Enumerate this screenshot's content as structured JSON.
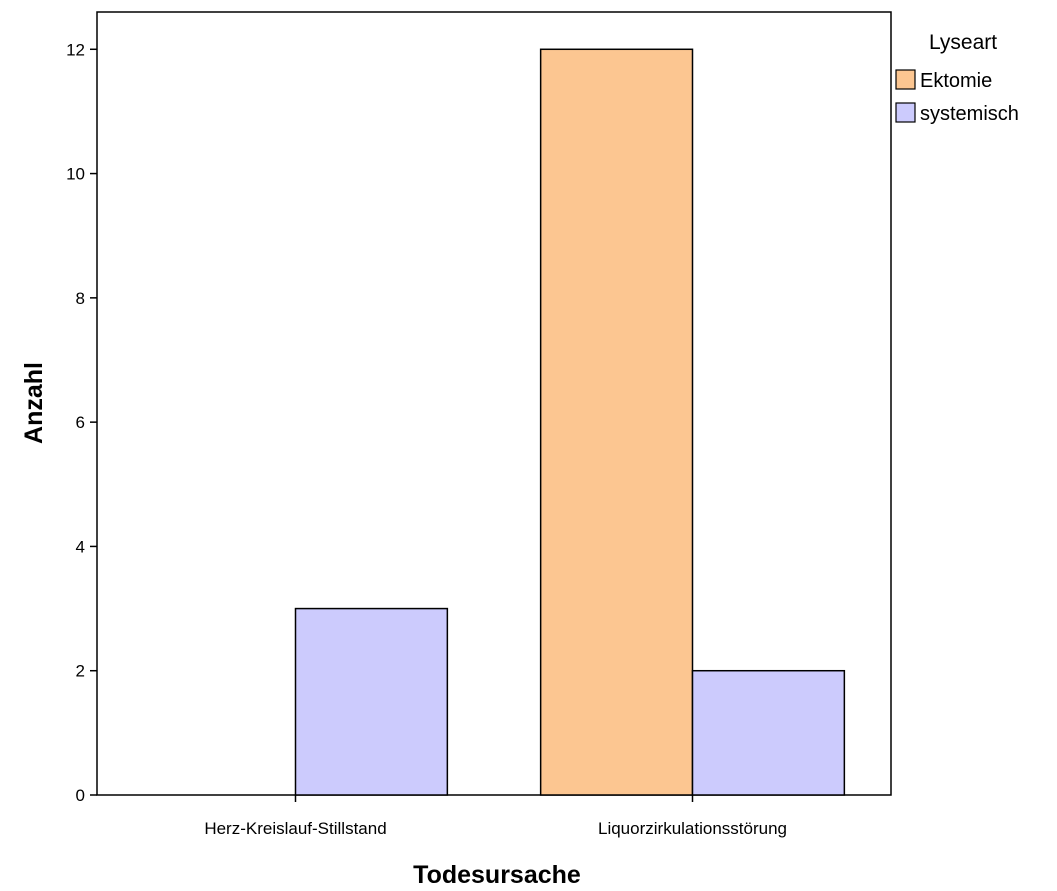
{
  "chart_data": {
    "type": "bar",
    "categories": [
      "Herz-Kreislauf-Stillstand",
      "Liquorzirkulationsstörung"
    ],
    "series": [
      {
        "name": "Ektomie",
        "values": [
          0,
          12
        ],
        "color": "#fcc691"
      },
      {
        "name": "systemisch",
        "values": [
          3,
          2
        ],
        "color": "#cccbfd"
      }
    ],
    "xlabel": "Todesursache",
    "ylabel": "Anzahl",
    "ylim": [
      0,
      12.6
    ],
    "yticks": [
      0,
      2,
      4,
      6,
      8,
      10,
      12
    ],
    "legend": {
      "title": "Lyseart",
      "placement": "top-right outside"
    },
    "grid": false
  }
}
